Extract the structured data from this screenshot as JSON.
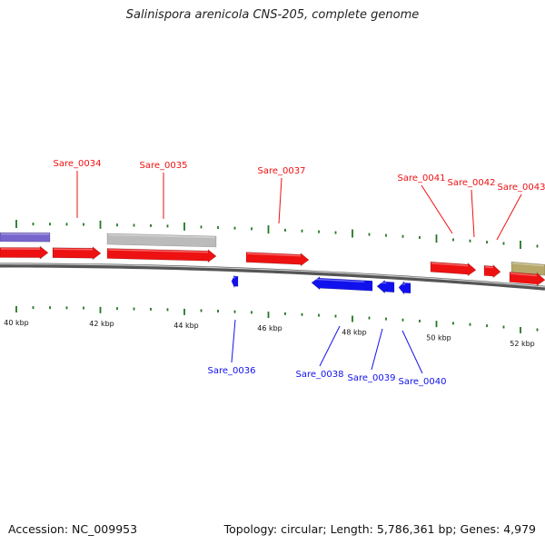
{
  "title": "Salinispora arenicola CNS-205, complete genome",
  "footer": {
    "accession": "Accession: NC_009953",
    "summary": "Topology: circular; Length: 5,786,361 bp; Genes: 4,979"
  },
  "colors": {
    "forward": "#ee1111",
    "reverse": "#1111ee",
    "backbone": "#777777",
    "tick": "#227722"
  },
  "scale_labels": [
    "40 kbp",
    "42 kbp",
    "44 kbp",
    "46 kbp",
    "48 kbp",
    "50 kbp",
    "52 kbp"
  ],
  "genes": [
    {
      "id": "unlabeled-blue-feature",
      "label": "",
      "strand": "+",
      "color": "#7766cc"
    },
    {
      "id": "sare-0033",
      "label": "",
      "strand": "+",
      "color": "#ee1111"
    },
    {
      "id": "sare-0034",
      "label": "Sare_0034",
      "strand": "+",
      "color": "#ee1111"
    },
    {
      "id": "unlabeled-gray-feature",
      "label": "",
      "strand": "+",
      "color": "#bbbbbb"
    },
    {
      "id": "sare-0035",
      "label": "Sare_0035",
      "strand": "+",
      "color": "#ee1111"
    },
    {
      "id": "sare-0037",
      "label": "Sare_0037",
      "strand": "+",
      "color": "#ee1111"
    },
    {
      "id": "sare-0041",
      "label": "Sare_0041",
      "strand": "+",
      "color": "#ee1111"
    },
    {
      "id": "sare-0042",
      "label": "Sare_0042",
      "strand": "+",
      "color": "#ee1111"
    },
    {
      "id": "unlabeled-olive-feature",
      "label": "",
      "strand": "+",
      "color": "#b5a86a"
    },
    {
      "id": "sare-0043",
      "label": "Sare_0043",
      "strand": "+",
      "color": "#ee1111"
    },
    {
      "id": "sare-0036",
      "label": "Sare_0036",
      "strand": "-",
      "color": "#1111ee"
    },
    {
      "id": "sare-0038",
      "label": "Sare_0038",
      "strand": "-",
      "color": "#1111ee"
    },
    {
      "id": "sare-0039",
      "label": "Sare_0039",
      "strand": "-",
      "color": "#1111ee"
    },
    {
      "id": "sare-0040",
      "label": "Sare_0040",
      "strand": "-",
      "color": "#1111ee"
    }
  ]
}
